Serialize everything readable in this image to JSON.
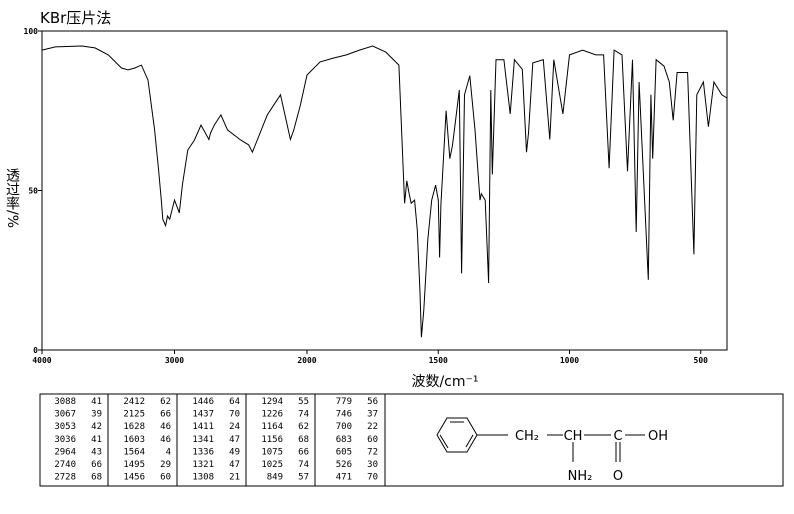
{
  "chart_data": {
    "type": "line",
    "title": "KBr压片法",
    "xlabel": "波数/cm⁻¹",
    "ylabel": "透过率/%",
    "color": "#000000",
    "xlim": [
      4000,
      400
    ],
    "xticks": [
      4000,
      3000,
      2000,
      1500,
      1000,
      500
    ],
    "ylim": [
      0,
      100
    ],
    "yticks": [
      0,
      50,
      100
    ],
    "x": [
      4000,
      3900,
      3700,
      3600,
      3500,
      3400,
      3350,
      3300,
      3250,
      3200,
      3150,
      3120,
      3100,
      3088,
      3067,
      3053,
      3036,
      3000,
      2964,
      2940,
      2900,
      2850,
      2800,
      2740,
      2728,
      2700,
      2650,
      2600,
      2550,
      2500,
      2440,
      2412,
      2300,
      2200,
      2125,
      2100,
      2050,
      2000,
      1950,
      1900,
      1850,
      1800,
      1750,
      1700,
      1650,
      1628,
      1620,
      1610,
      1603,
      1590,
      1580,
      1570,
      1564,
      1555,
      1540,
      1525,
      1510,
      1500,
      1495,
      1490,
      1470,
      1456,
      1446,
      1437,
      1420,
      1411,
      1400,
      1380,
      1360,
      1341,
      1336,
      1321,
      1308,
      1300,
      1294,
      1280,
      1250,
      1226,
      1210,
      1180,
      1164,
      1156,
      1140,
      1100,
      1075,
      1060,
      1025,
      1000,
      950,
      900,
      870,
      849,
      830,
      800,
      779,
      760,
      746,
      735,
      700,
      690,
      683,
      670,
      640,
      620,
      605,
      590,
      550,
      526,
      515,
      490,
      471,
      450,
      420,
      400
    ],
    "values": [
      94,
      95,
      95.3,
      94.7,
      92.5,
      88.4,
      87.8,
      88.4,
      89.3,
      84.6,
      69,
      56.4,
      47,
      41,
      39,
      42,
      41,
      47,
      43,
      52,
      62.7,
      65.8,
      70.5,
      66,
      68,
      70.5,
      73.7,
      69,
      67.4,
      65.8,
      64.3,
      62,
      73.7,
      80,
      66,
      69,
      76.8,
      86.2,
      90.3,
      91.5,
      92.5,
      94,
      95.3,
      93.4,
      89.3,
      46,
      53,
      48.6,
      46,
      47,
      37.6,
      18.8,
      4,
      12.5,
      34.5,
      47,
      51.7,
      47,
      29,
      45.5,
      75,
      60,
      64,
      70,
      81.5,
      24,
      80,
      86,
      69,
      47,
      49,
      47,
      21,
      81.5,
      55,
      91,
      91,
      74,
      91,
      88,
      62,
      68,
      90,
      91,
      66,
      91,
      74,
      92.5,
      94,
      92.5,
      92.5,
      57,
      94,
      92.5,
      56,
      91,
      37,
      84,
      22,
      80,
      60,
      91,
      89,
      84,
      72,
      87,
      87,
      30,
      80,
      84,
      70,
      84,
      80,
      79
    ]
  },
  "peak_table": {
    "columns": [
      [
        [
          3088,
          41
        ],
        [
          3067,
          39
        ],
        [
          3053,
          42
        ],
        [
          3036,
          41
        ],
        [
          2964,
          43
        ],
        [
          2740,
          66
        ],
        [
          2728,
          68
        ]
      ],
      [
        [
          2412,
          62
        ],
        [
          2125,
          66
        ],
        [
          1628,
          46
        ],
        [
          1603,
          46
        ],
        [
          1564,
          4
        ],
        [
          1495,
          29
        ],
        [
          1456,
          60
        ]
      ],
      [
        [
          1446,
          64
        ],
        [
          1437,
          70
        ],
        [
          1411,
          24
        ],
        [
          1341,
          47
        ],
        [
          1336,
          49
        ],
        [
          1321,
          47
        ],
        [
          1308,
          21
        ]
      ],
      [
        [
          1294,
          55
        ],
        [
          1226,
          74
        ],
        [
          1164,
          62
        ],
        [
          1156,
          68
        ],
        [
          1075,
          66
        ],
        [
          1025,
          74
        ],
        [
          849,
          57
        ]
      ],
      [
        [
          779,
          56
        ],
        [
          746,
          37
        ],
        [
          700,
          22
        ],
        [
          683,
          60
        ],
        [
          605,
          72
        ],
        [
          526,
          30
        ],
        [
          471,
          70
        ]
      ]
    ]
  },
  "structure": {
    "groups": [
      "CH₂",
      "CH",
      "C",
      "OH",
      "NH₂",
      "O"
    ]
  }
}
